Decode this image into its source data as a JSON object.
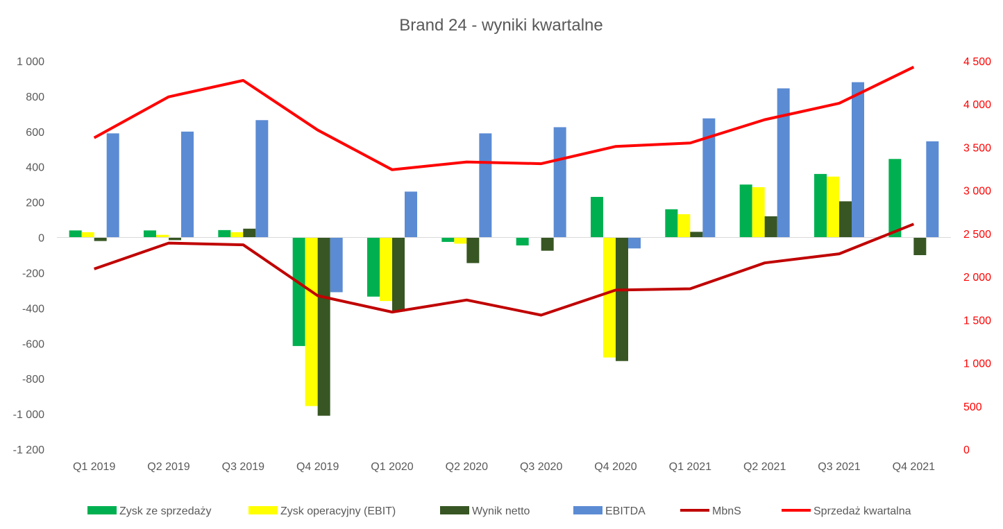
{
  "chart_data": {
    "type": "bar",
    "title": "Brand 24 - wyniki kwartalne",
    "categories": [
      "Q1 2019",
      "Q2 2019",
      "Q3 2019",
      "Q4 2019",
      "Q1 2020",
      "Q2 2020",
      "Q3 2020",
      "Q4 2020",
      "Q1 2021",
      "Q2 2021",
      "Q3 2021",
      "Q4 2021"
    ],
    "y_left": {
      "range": [
        -1200,
        1000
      ],
      "ticks": [
        1000,
        800,
        600,
        400,
        200,
        0,
        -200,
        -400,
        -600,
        -800,
        -1000,
        -1200
      ],
      "tick_labels": [
        "1 000",
        "800",
        "600",
        "400",
        "200",
        "0",
        "-200",
        "-400",
        "-600",
        "-800",
        "-1 000",
        "-1 200"
      ]
    },
    "y_right": {
      "range": [
        0,
        4500
      ],
      "ticks": [
        4500,
        4000,
        3500,
        3000,
        2500,
        2000,
        1500,
        1000,
        500,
        0
      ],
      "tick_labels": [
        "4 500",
        "4 000",
        "3 500",
        "3 000",
        "2 500",
        "2 000",
        "1 500",
        "1 000",
        "500",
        "0"
      ],
      "color": "#ff0000"
    },
    "grid": false,
    "legend": "bottom",
    "bar_series": [
      {
        "name": "Zysk ze sprzedaży",
        "color": "#00b050",
        "values": [
          40,
          40,
          42,
          -615,
          -335,
          -25,
          -45,
          230,
          160,
          300,
          360,
          445
        ]
      },
      {
        "name": "Zysk operacyjny (EBIT)",
        "color": "#ffff00",
        "values": [
          30,
          15,
          30,
          -955,
          -360,
          -35,
          0,
          -680,
          132,
          285,
          345,
          0
        ]
      },
      {
        "name": "Wynik netto",
        "color": "#375623",
        "values": [
          -20,
          -15,
          50,
          -1010,
          -420,
          -145,
          -75,
          -700,
          32,
          120,
          205,
          -100
        ]
      },
      {
        "name": "EBITDA",
        "color": "#5b8bd3",
        "values": [
          590,
          600,
          665,
          -310,
          260,
          590,
          625,
          -62,
          675,
          845,
          880,
          545
        ]
      }
    ],
    "line_series": [
      {
        "name": "MbnS",
        "color": "#c00000",
        "axis": "right",
        "values": [
          2090,
          2390,
          2370,
          1780,
          1590,
          1730,
          1555,
          1845,
          1860,
          2160,
          2265,
          2610
        ]
      },
      {
        "name": "Sprzedaż kwartalna",
        "color": "#ff0000",
        "axis": "right",
        "values": [
          3610,
          4085,
          4275,
          3700,
          3240,
          3330,
          3310,
          3510,
          3550,
          3820,
          4010,
          4430
        ]
      }
    ]
  }
}
